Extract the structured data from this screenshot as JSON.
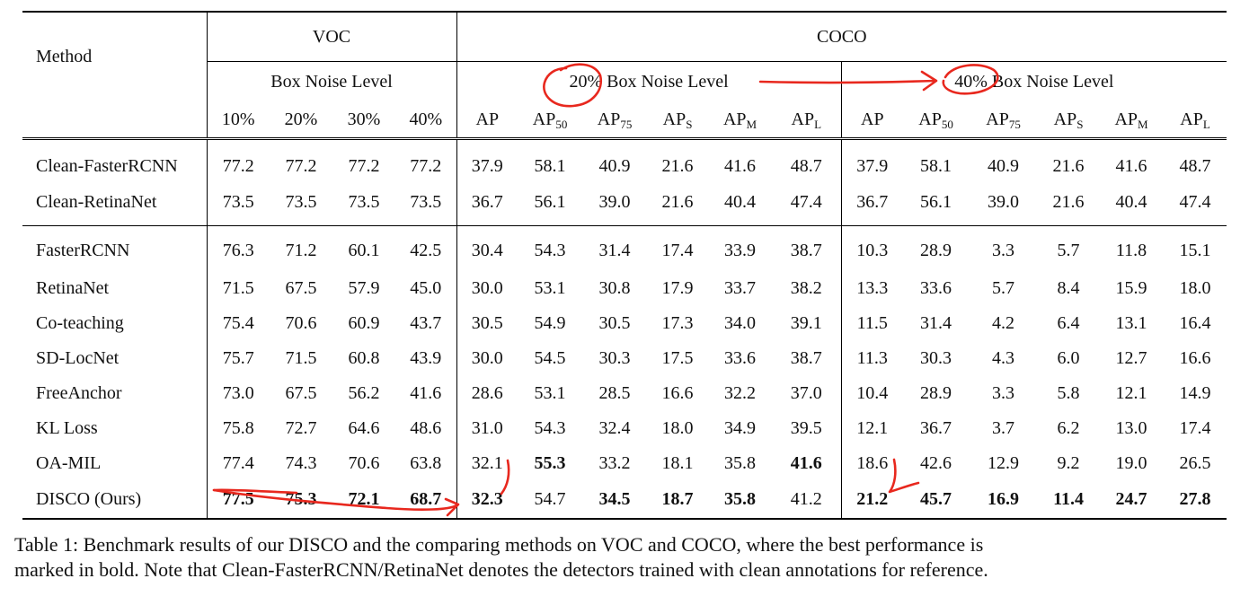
{
  "header": {
    "method": "Method",
    "voc": "VOC",
    "coco": "COCO",
    "voc_noise": "Box Noise Level",
    "coco_noise_20": "20% Box Noise Level",
    "coco_noise_40": "40% Box Noise Level",
    "voc_levels": [
      "10%",
      "20%",
      "30%",
      "40%"
    ],
    "metrics": [
      {
        "base": "AP",
        "sub": ""
      },
      {
        "base": "AP",
        "sub": "50"
      },
      {
        "base": "AP",
        "sub": "75"
      },
      {
        "base": "AP",
        "sub": "S"
      },
      {
        "base": "AP",
        "sub": "M"
      },
      {
        "base": "AP",
        "sub": "L"
      }
    ]
  },
  "rows": [
    {
      "method": "Clean-FasterRCNN",
      "values": [
        "77.2",
        "77.2",
        "77.2",
        "77.2",
        "37.9",
        "58.1",
        "40.9",
        "21.6",
        "41.6",
        "48.7",
        "37.9",
        "58.1",
        "40.9",
        "21.6",
        "41.6",
        "48.7"
      ],
      "bold": []
    },
    {
      "method": "Clean-RetinaNet",
      "values": [
        "73.5",
        "73.5",
        "73.5",
        "73.5",
        "36.7",
        "56.1",
        "39.0",
        "21.6",
        "40.4",
        "47.4",
        "36.7",
        "56.1",
        "39.0",
        "21.6",
        "40.4",
        "47.4"
      ],
      "bold": []
    },
    {
      "method": "FasterRCNN",
      "values": [
        "76.3",
        "71.2",
        "60.1",
        "42.5",
        "30.4",
        "54.3",
        "31.4",
        "17.4",
        "33.9",
        "38.7",
        "10.3",
        "28.9",
        "3.3",
        "5.7",
        "11.8",
        "15.1"
      ],
      "bold": []
    },
    {
      "method": "RetinaNet",
      "values": [
        "71.5",
        "67.5",
        "57.9",
        "45.0",
        "30.0",
        "53.1",
        "30.8",
        "17.9",
        "33.7",
        "38.2",
        "13.3",
        "33.6",
        "5.7",
        "8.4",
        "15.9",
        "18.0"
      ],
      "bold": []
    },
    {
      "method": "Co-teaching",
      "values": [
        "75.4",
        "70.6",
        "60.9",
        "43.7",
        "30.5",
        "54.9",
        "30.5",
        "17.3",
        "34.0",
        "39.1",
        "11.5",
        "31.4",
        "4.2",
        "6.4",
        "13.1",
        "16.4"
      ],
      "bold": []
    },
    {
      "method": "SD-LocNet",
      "values": [
        "75.7",
        "71.5",
        "60.8",
        "43.9",
        "30.0",
        "54.5",
        "30.3",
        "17.5",
        "33.6",
        "38.7",
        "11.3",
        "30.3",
        "4.3",
        "6.0",
        "12.7",
        "16.6"
      ],
      "bold": []
    },
    {
      "method": "FreeAnchor",
      "values": [
        "73.0",
        "67.5",
        "56.2",
        "41.6",
        "28.6",
        "53.1",
        "28.5",
        "16.6",
        "32.2",
        "37.0",
        "10.4",
        "28.9",
        "3.3",
        "5.8",
        "12.1",
        "14.9"
      ],
      "bold": []
    },
    {
      "method": "KL Loss",
      "values": [
        "75.8",
        "72.7",
        "64.6",
        "48.6",
        "31.0",
        "54.3",
        "32.4",
        "18.0",
        "34.9",
        "39.5",
        "12.1",
        "36.7",
        "3.7",
        "6.2",
        "13.0",
        "17.4"
      ],
      "bold": []
    },
    {
      "method": "OA-MIL",
      "values": [
        "77.4",
        "74.3",
        "70.6",
        "63.8",
        "32.1",
        "55.3",
        "33.2",
        "18.1",
        "35.8",
        "41.6",
        "18.6",
        "42.6",
        "12.9",
        "9.2",
        "19.0",
        "26.5"
      ],
      "bold": [
        5,
        9
      ]
    },
    {
      "method": "DISCO (Ours)",
      "values": [
        "77.5",
        "75.3",
        "72.1",
        "68.7",
        "32.3",
        "54.7",
        "34.5",
        "18.7",
        "35.8",
        "41.2",
        "21.2",
        "45.7",
        "16.9",
        "11.4",
        "24.7",
        "27.8"
      ],
      "bold": [
        0,
        1,
        2,
        3,
        4,
        6,
        7,
        8,
        10,
        11,
        12,
        13,
        14,
        15
      ]
    }
  ],
  "caption": {
    "line1": "Table 1: Benchmark results of our DISCO and the comparing methods on VOC and COCO, where the best performance is",
    "line2": "marked in bold. Note that Clean-FasterRCNN/RetinaNet denotes the detectors trained with clean annotations for reference."
  },
  "colors": {
    "text": "#111111",
    "rule": "#000000",
    "annotation_ink": "#e8281e"
  }
}
